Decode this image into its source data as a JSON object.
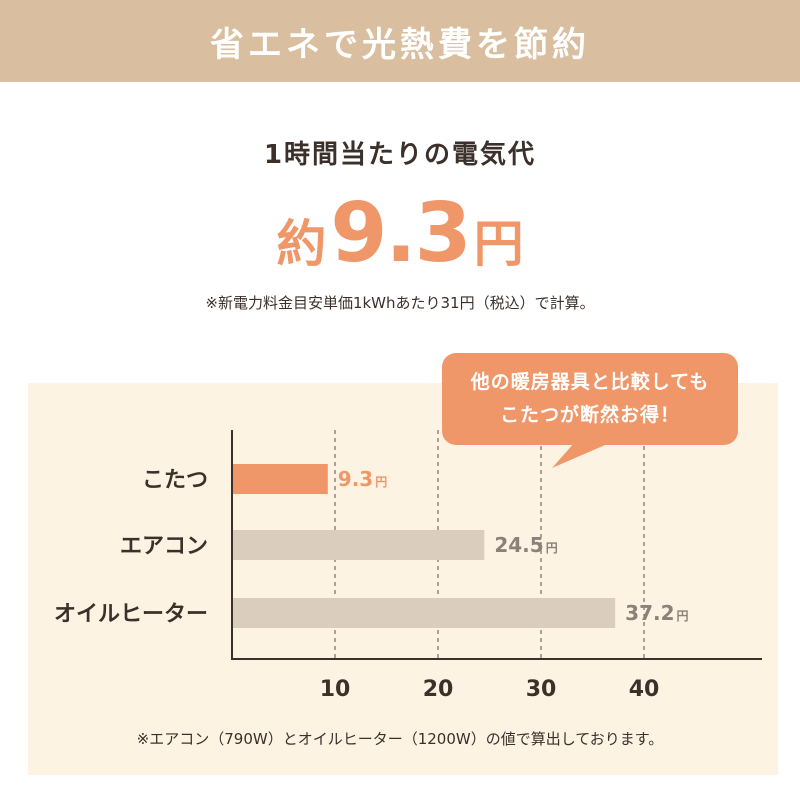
{
  "header": {
    "title": "省エネで光熱費を節約"
  },
  "headline": {
    "subtitle": "1時間当たりの電気代",
    "price_prefix": "約",
    "price_value": "9.3",
    "price_unit": "円",
    "note": "※新電力料金目安単価1kWhあたり31円（税込）で計算。"
  },
  "callout": {
    "line1": "他の暖房器具と比較しても",
    "line2": "こたつが断然お得！"
  },
  "chart_data": {
    "type": "bar",
    "orientation": "horizontal",
    "categories": [
      "こたつ",
      "エアコン",
      "オイルヒーター"
    ],
    "values": [
      9.3,
      24.5,
      37.2
    ],
    "value_labels": [
      "9.3",
      "24.5",
      "37.2"
    ],
    "unit": "円",
    "xlim": [
      0,
      47
    ],
    "xticks": [
      "10",
      "20",
      "30",
      "40"
    ],
    "xtick_values": [
      10,
      20,
      30,
      40
    ],
    "grid": "dashed vertical",
    "bar_colors": [
      "#f0976a",
      "#dbcdbd",
      "#dbcdbd"
    ],
    "label_colors": [
      "#f0976a",
      "#8c8078",
      "#8c8078"
    ]
  },
  "footnote": "※エアコン（790W）とオイルヒーター（1200W）の値で算出しております。",
  "colors": {
    "banner": "#d9bf9f",
    "accent": "#f0976a",
    "panel": "#fdf3e3",
    "neutral_bar": "#dbcdbd",
    "text": "#3c302a"
  }
}
